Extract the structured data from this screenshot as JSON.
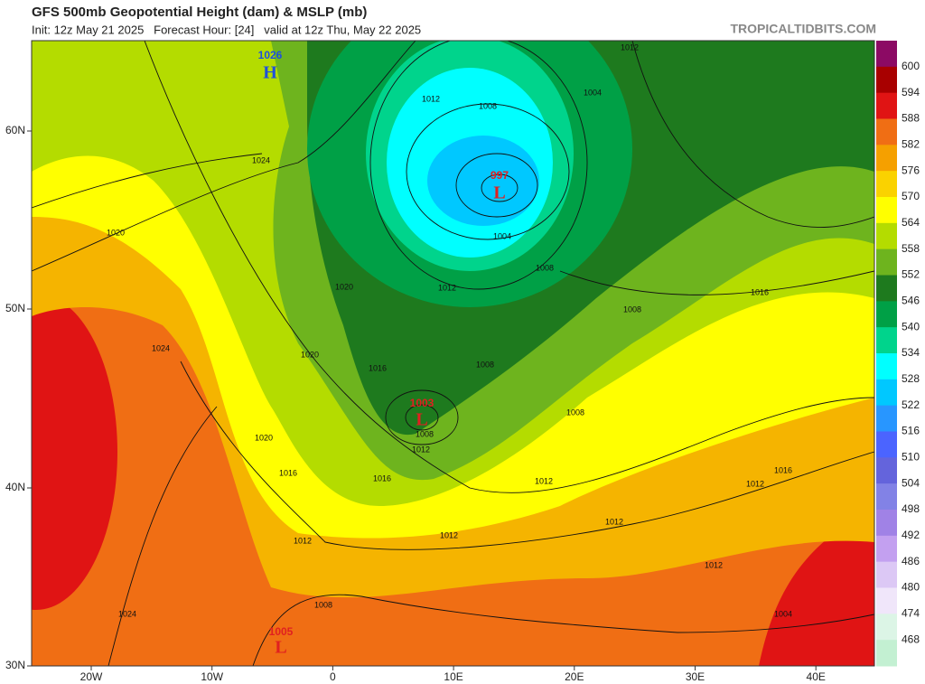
{
  "header": {
    "title": "GFS 500mb Geopotential Height (dam) & MSLP (mb)",
    "subtitle": "Init: 12z May 21 2025   Forecast Hour: [24]   valid at 12z Thu, May 22 2025",
    "brand": "TROPICALTIDBITS.COM"
  },
  "axes": {
    "lat_labels": [
      "60N",
      "50N",
      "40N",
      "30N"
    ],
    "lon_labels": [
      "20W",
      "10W",
      "0",
      "10E",
      "20E",
      "30E",
      "40E"
    ]
  },
  "colorbar": {
    "colors": [
      "#8c0a64",
      "#a80000",
      "#e01414",
      "#f06e14",
      "#f5a000",
      "#fad200",
      "#ffff00",
      "#b4dc00",
      "#6eb41e",
      "#1e7a1e",
      "#00a046",
      "#00d48c",
      "#00ffff",
      "#00c8ff",
      "#2896ff",
      "#4b64ff",
      "#6464dc",
      "#8282e6",
      "#a082e6",
      "#c3a0f0",
      "#dcc8f5",
      "#f0e6fa",
      "#dcf5e6",
      "#c3f0d2"
    ],
    "labels": [
      600,
      594,
      588,
      582,
      576,
      570,
      564,
      558,
      552,
      546,
      540,
      534,
      528,
      522,
      516,
      510,
      504,
      498,
      492,
      486,
      480,
      474,
      468
    ]
  },
  "centers": [
    {
      "pressure": "1026",
      "letter": "H"
    },
    {
      "pressure": "997",
      "letter": "L"
    },
    {
      "pressure": "1003",
      "letter": "L"
    },
    {
      "pressure": "1005",
      "letter": "L"
    }
  ],
  "isobar_labels": [
    "1012",
    "1012",
    "1008",
    "1004",
    "1024",
    "1020",
    "1004",
    "1008",
    "1012",
    "1020",
    "1016",
    "1008",
    "1024",
    "1020",
    "1016",
    "1008",
    "1008",
    "1008",
    "1012",
    "1020",
    "1016",
    "1016",
    "1016",
    "1012",
    "1012",
    "1012",
    "1012",
    "1012",
    "1012",
    "1008",
    "1024",
    "1004"
  ]
}
